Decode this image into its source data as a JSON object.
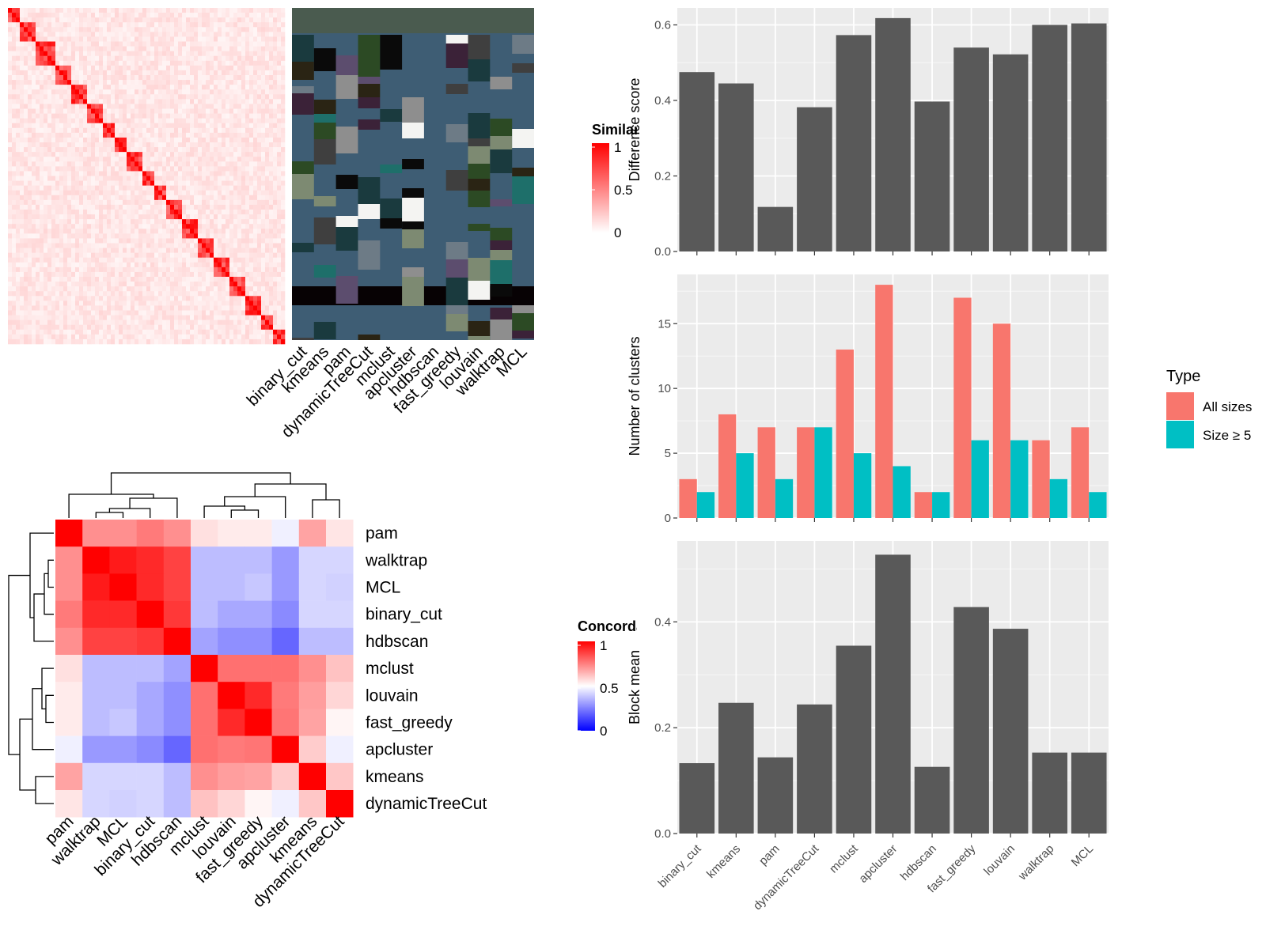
{
  "chart_data": [
    {
      "type": "heatmap",
      "name": "similarity-heatmap",
      "n_cells": 70,
      "legend_title": "Similarity",
      "legend_ticks": [
        "1",
        "0.5",
        "0"
      ],
      "column_labels": [
        "binary_cut",
        "kmeans",
        "pam",
        "dynamicTreeCut",
        "mclust",
        "apcluster",
        "hdbscan",
        "fast_greedy",
        "louvain",
        "walktrap",
        "MCL"
      ],
      "colors": {
        "high": "#ff0000",
        "low": "#ffffff",
        "annotation_base": "#3e5d74",
        "annotation_header": "#4a5b4f",
        "annotation_black": "#070204"
      }
    },
    {
      "type": "bar",
      "name": "difference-score",
      "categories": [
        "binary_cut",
        "kmeans",
        "pam",
        "dynamicTreeCut",
        "mclust",
        "apcluster",
        "hdbscan",
        "fast_greedy",
        "louvain",
        "walktrap",
        "MCL"
      ],
      "values": [
        0.475,
        0.445,
        0.118,
        0.382,
        0.573,
        0.618,
        0.397,
        0.54,
        0.522,
        0.6,
        0.604
      ],
      "ylabel": "Difference score",
      "ylim": [
        0,
        0.645
      ],
      "yticks": [
        "0.0",
        "0.2",
        "0.4",
        "0.6"
      ],
      "bar_color": "#595959"
    },
    {
      "type": "bar",
      "name": "number-of-clusters",
      "categories": [
        "binary_cut",
        "kmeans",
        "pam",
        "dynamicTreeCut",
        "mclust",
        "apcluster",
        "hdbscan",
        "fast_greedy",
        "louvain",
        "walktrap",
        "MCL"
      ],
      "series": [
        {
          "name": "All sizes",
          "values": [
            3,
            8,
            7,
            7,
            13,
            18,
            2,
            17,
            15,
            6,
            7
          ],
          "color": "#f8766d"
        },
        {
          "name": "Size ≥ 5",
          "values": [
            2,
            5,
            3,
            7,
            5,
            4,
            2,
            6,
            6,
            3,
            2
          ],
          "color": "#00bfc4"
        }
      ],
      "ylabel": "Number of clusters",
      "ylim": [
        0,
        18.8
      ],
      "yticks": [
        "0",
        "5",
        "10",
        "15"
      ],
      "legend_title": "Type",
      "legend_position": "right"
    },
    {
      "type": "bar",
      "name": "block-mean",
      "categories": [
        "binary_cut",
        "kmeans",
        "pam",
        "dynamicTreeCut",
        "mclust",
        "apcluster",
        "hdbscan",
        "fast_greedy",
        "louvain",
        "walktrap",
        "MCL"
      ],
      "values": [
        0.133,
        0.247,
        0.144,
        0.244,
        0.355,
        0.527,
        0.126,
        0.428,
        0.387,
        0.153,
        0.153
      ],
      "ylabel": "Block mean",
      "ylim": [
        0,
        0.553
      ],
      "yticks": [
        "0.0",
        "0.2",
        "0.4"
      ],
      "bar_color": "#595959"
    },
    {
      "type": "heatmap",
      "name": "concordance-heatmap",
      "labels": [
        "pam",
        "walktrap",
        "MCL",
        "binary_cut",
        "hdbscan",
        "mclust",
        "louvain",
        "fast_greedy",
        "apcluster",
        "kmeans",
        "dynamicTreeCut"
      ],
      "matrix": [
        [
          1.0,
          0.72,
          0.72,
          0.76,
          0.72,
          0.56,
          0.54,
          0.54,
          0.47,
          0.68,
          0.55
        ],
        [
          0.72,
          1.0,
          0.95,
          0.92,
          0.87,
          0.37,
          0.37,
          0.37,
          0.3,
          0.42,
          0.42
        ],
        [
          0.72,
          0.95,
          1.0,
          0.92,
          0.87,
          0.37,
          0.37,
          0.39,
          0.3,
          0.42,
          0.41
        ],
        [
          0.76,
          0.92,
          0.92,
          1.0,
          0.89,
          0.37,
          0.33,
          0.33,
          0.27,
          0.42,
          0.42
        ],
        [
          0.72,
          0.87,
          0.87,
          0.89,
          1.0,
          0.32,
          0.28,
          0.28,
          0.2,
          0.37,
          0.37
        ],
        [
          0.56,
          0.37,
          0.37,
          0.37,
          0.32,
          1.0,
          0.78,
          0.78,
          0.78,
          0.72,
          0.62
        ],
        [
          0.54,
          0.37,
          0.37,
          0.33,
          0.28,
          0.78,
          1.0,
          0.92,
          0.76,
          0.69,
          0.58
        ],
        [
          0.54,
          0.37,
          0.39,
          0.33,
          0.28,
          0.78,
          0.92,
          1.0,
          0.77,
          0.68,
          0.52
        ],
        [
          0.47,
          0.3,
          0.3,
          0.27,
          0.2,
          0.78,
          0.76,
          0.77,
          1.0,
          0.6,
          0.47
        ],
        [
          0.68,
          0.42,
          0.42,
          0.42,
          0.37,
          0.72,
          0.69,
          0.68,
          0.6,
          1.0,
          0.61
        ],
        [
          0.55,
          0.42,
          0.41,
          0.42,
          0.37,
          0.62,
          0.58,
          0.52,
          0.47,
          0.61,
          1.0
        ]
      ],
      "legend_title": "Concordance",
      "legend_ticks": [
        "1",
        "0.5",
        "0"
      ],
      "colors": {
        "high": "#ff0000",
        "mid": "#ffffff",
        "low": "#0000ff"
      }
    }
  ]
}
